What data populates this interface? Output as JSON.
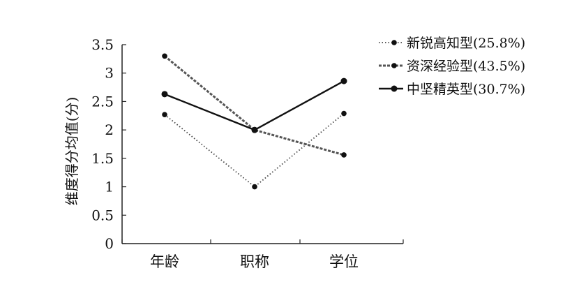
{
  "chart_data": {
    "type": "line",
    "categories": [
      "年龄",
      "职称",
      "学位"
    ],
    "ylabel": "维度得分均值(分)",
    "ylim": [
      0,
      3.5
    ],
    "yticks": [
      "0",
      "0.5",
      "1",
      "1.5",
      "2",
      "2.5",
      "3",
      "3.5"
    ],
    "grid": false,
    "legend_position": "top-right",
    "series": [
      {
        "name": "新锐高知型(25.8%)",
        "values": [
          2.27,
          1.0,
          2.29
        ],
        "style": "dotted",
        "color": "#444444"
      },
      {
        "name": "资深经验型(43.5%)",
        "values": [
          3.3,
          2.0,
          1.56
        ],
        "style": "dashed",
        "color": "#555555"
      },
      {
        "name": "中坚精英型(30.7%)",
        "values": [
          2.63,
          2.0,
          2.86
        ],
        "style": "solid",
        "color": "#111111"
      }
    ]
  }
}
